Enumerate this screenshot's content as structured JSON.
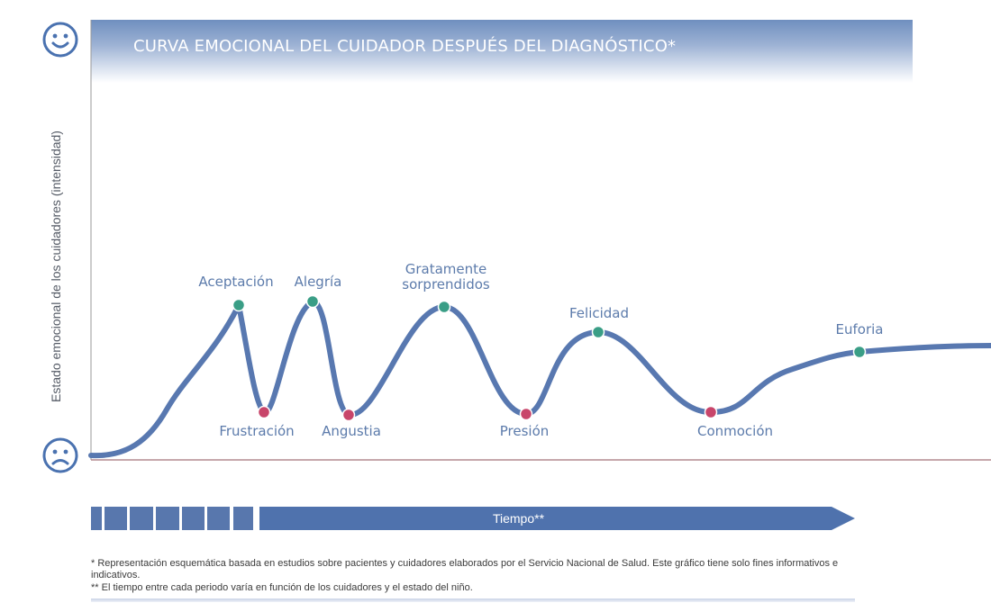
{
  "title": "CURVA EMOCIONAL DEL CUIDADOR DESPUÉS DEL DIAGNÓSTICO*",
  "icons": {
    "top": "happy-face-icon",
    "bottom": "sad-face-icon"
  },
  "colors": {
    "curve": "#5878b0",
    "positive_point": "#3a9e86",
    "negative_point": "#c8456a",
    "label": "#5c7bab",
    "time_bar": "#4f72ad"
  },
  "chart_data": {
    "type": "line",
    "title": "CURVA EMOCIONAL DEL CUIDADOR DESPUÉS DEL DIAGNÓSTICO*",
    "xlabel": "Tiempo**",
    "ylabel": "Estado emocional de los cuidadores (intensidad)",
    "grid": false,
    "legend": "none",
    "points": [
      {
        "label": "Aceptación",
        "kind": "positive"
      },
      {
        "label": "Frustración",
        "kind": "negative"
      },
      {
        "label": "Alegría",
        "kind": "positive"
      },
      {
        "label": "Angustia",
        "kind": "negative"
      },
      {
        "label": "Gratamente sorprendidos",
        "kind": "positive"
      },
      {
        "label": "Presión",
        "kind": "negative"
      },
      {
        "label": "Felicidad",
        "kind": "positive"
      },
      {
        "label": "Conmoción",
        "kind": "negative"
      },
      {
        "label": "Euforia",
        "kind": "positive"
      }
    ]
  },
  "time_axis": {
    "label": "Tiempo**"
  },
  "footnotes": {
    "note1": "* Representación esquemática basada en estudios sobre pacientes y cuidadores elaborados por el Servicio Nacional de Salud. Este gráfico tiene solo fines informativos e indicativos.",
    "note2": "** El tiempo entre cada periodo varía en función de los cuidadores y el estado del niño."
  }
}
